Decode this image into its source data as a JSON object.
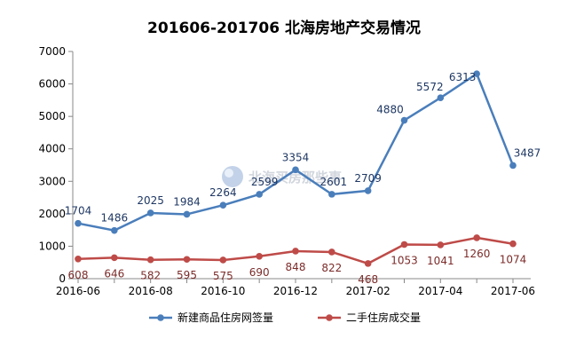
{
  "chart_data": {
    "type": "line",
    "title": "201606-201706 北海房地产交易情况",
    "xlabel": "",
    "ylabel": "",
    "x": [
      "2016-06",
      "2016-07",
      "2016-08",
      "2016-09",
      "2016-10",
      "2016-11",
      "2016-12",
      "2017-01",
      "2017-02",
      "2017-03",
      "2017-04",
      "2017-05",
      "2017-06"
    ],
    "x_tick_labels": [
      "2016-06",
      "",
      "2016-08",
      "",
      "2016-10",
      "",
      "2016-12",
      "",
      "2017-02",
      "",
      "2017-04",
      "",
      "2017-06"
    ],
    "ylim": [
      0,
      7000
    ],
    "y_ticks": [
      0,
      1000,
      2000,
      3000,
      4000,
      5000,
      6000,
      7000
    ],
    "grid": false,
    "legend_position": "bottom",
    "series": [
      {
        "name": "新建商品住房网签量",
        "color": "#4a7ebb",
        "label_color": "#1f3864",
        "marker": "circle",
        "values": [
          1704,
          1486,
          2025,
          1984,
          2264,
          2599,
          3354,
          2601,
          2709,
          4880,
          5572,
          6313,
          3487
        ]
      },
      {
        "name": "二手住房成交量",
        "color": "#be4b48",
        "label_color": "#7b2c2a",
        "marker": "circle",
        "values": [
          608,
          646,
          582,
          595,
          575,
          690,
          848,
          822,
          468,
          1053,
          1041,
          1260,
          1074
        ]
      }
    ]
  },
  "watermark": {
    "text": "北海买房那些事",
    "icon": "globe-icon"
  }
}
